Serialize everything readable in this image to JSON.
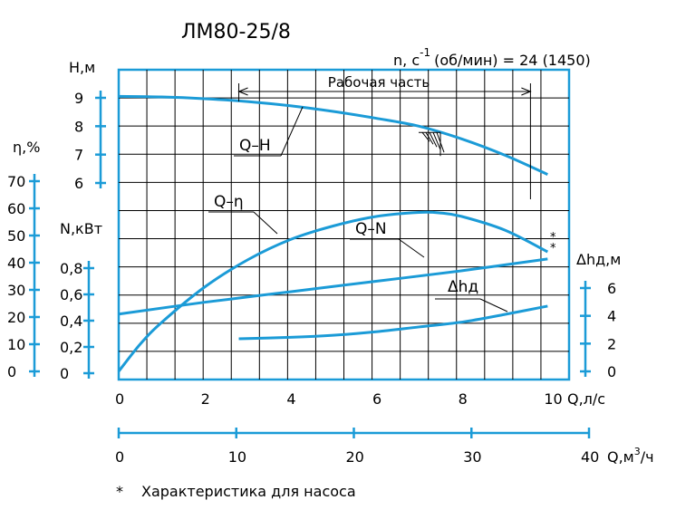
{
  "title": "ЛМ80-25/8",
  "speed_label": {
    "prefix": "n, c",
    "exponent": "-1",
    "suffix": "(об/мин) = 24 (1450)"
  },
  "working_range_label": "Рабочая часть",
  "footnote": {
    "mark": "*",
    "text": "Характеристика для насоса"
  },
  "colors": {
    "axis": "#1b9bd7",
    "curve": "#1b9bd7",
    "grid": "#000000",
    "text": "#000000"
  },
  "chart_data": {
    "type": "line",
    "x_axis": {
      "label": "Q,л/с",
      "range": [
        0,
        10.5
      ],
      "ticks": [
        "0",
        "2",
        "4",
        "6",
        "8",
        "10"
      ]
    },
    "x2_axis": {
      "label_prefix": "Q,м",
      "label_exp": "3",
      "label_suffix": "/ч",
      "range": [
        0,
        40
      ],
      "ticks": [
        "0",
        "10",
        "20",
        "30",
        "40"
      ]
    },
    "axes": {
      "H": {
        "label": "Н,м",
        "ticks": [
          "9",
          "8",
          "7",
          "6"
        ],
        "range": [
          6,
          9
        ]
      },
      "eta": {
        "label": "η,%",
        "ticks": [
          "70",
          "60",
          "50",
          "40",
          "30",
          "20",
          "10",
          "0"
        ],
        "range": [
          0,
          70
        ]
      },
      "N": {
        "label": "N,кВт",
        "ticks": [
          "0,8",
          "0,6",
          "0,4",
          "0,2",
          "0"
        ],
        "range": [
          0,
          0.8
        ]
      },
      "dh": {
        "label": "Δhд,м",
        "ticks": [
          "6",
          "4",
          "2",
          "0"
        ],
        "range": [
          0,
          6
        ]
      }
    },
    "grid": true,
    "working_range": {
      "q_start": 2.8,
      "q_end": 9.6
    },
    "series": [
      {
        "name": "Q–H",
        "axis": "H",
        "x": [
          0,
          1,
          2,
          3,
          4,
          5,
          6,
          7,
          8,
          9,
          10
        ],
        "y": [
          9.05,
          9.03,
          8.97,
          8.87,
          8.72,
          8.52,
          8.28,
          8.0,
          7.55,
          6.98,
          6.3
        ]
      },
      {
        "name": "Q–η",
        "axis": "eta",
        "x": [
          0,
          0.5,
          1,
          2,
          3,
          4,
          5,
          6,
          7,
          7.5,
          8,
          9,
          10
        ],
        "y": [
          0,
          10,
          18,
          31,
          41,
          48.5,
          53.5,
          57,
          58.5,
          58.3,
          57,
          52,
          44
        ]
      },
      {
        "name": "Q–N",
        "axis": "N",
        "x": [
          0,
          2,
          4,
          6,
          8,
          10
        ],
        "y": [
          0.45,
          0.54,
          0.62,
          0.7,
          0.78,
          0.87
        ]
      },
      {
        "name": "Δhд",
        "axis": "dh",
        "x": [
          2.8,
          4,
          5,
          6,
          7,
          8,
          9,
          10
        ],
        "y": [
          2.35,
          2.45,
          2.6,
          2.85,
          3.2,
          3.55,
          4.1,
          4.7
        ]
      }
    ]
  }
}
